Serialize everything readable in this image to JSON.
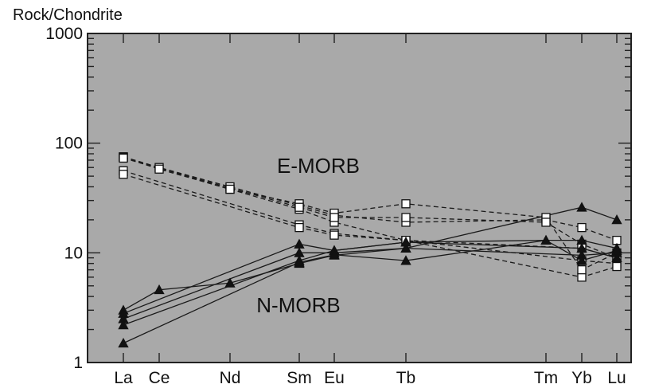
{
  "chart_data": {
    "type": "line",
    "title": "",
    "xlabel": "",
    "ylabel": "Rock/Chondrite",
    "yscale": "log",
    "ylim": [
      1,
      1000
    ],
    "y_ticks": [
      {
        "value": 1,
        "label": "1"
      },
      {
        "value": 10,
        "label": "10"
      },
      {
        "value": 100,
        "label": "100"
      },
      {
        "value": 1000,
        "label": "1000"
      }
    ],
    "categories": [
      "La",
      "Ce",
      "Nd",
      "Sm",
      "Eu",
      "Tb",
      "Tm",
      "Yb",
      "Lu"
    ],
    "grid": false,
    "legend": "none",
    "background_color": "#a9a9a9",
    "annotations": [
      {
        "text": "E-MORB",
        "near": "upper middle, above dashed lines"
      },
      {
        "text": "N-MORB",
        "near": "lower middle, below solid lines"
      }
    ],
    "series": [
      {
        "group": "E-MORB",
        "style": "dashed",
        "marker": "square",
        "points": [
          {
            "x": "La",
            "y": 75
          },
          {
            "x": "Ce",
            "y": 60
          },
          {
            "x": "Nd",
            "y": 40
          },
          {
            "x": "Sm",
            "y": 27
          },
          {
            "x": "Eu",
            "y": 22
          },
          {
            "x": "Tb",
            "y": 19
          },
          {
            "x": "Tm",
            "y": 20
          },
          {
            "x": "Yb",
            "y": 17
          },
          {
            "x": "Lu",
            "y": 13
          }
        ]
      },
      {
        "group": "E-MORB",
        "style": "dashed",
        "marker": "square",
        "points": [
          {
            "x": "La",
            "y": 75
          },
          {
            "x": "Nd",
            "y": 38
          },
          {
            "x": "Sm",
            "y": 25
          },
          {
            "x": "Eu",
            "y": 19
          },
          {
            "x": "Tb",
            "y": 13
          },
          {
            "x": "Yb",
            "y": 11
          },
          {
            "x": "Lu",
            "y": 9
          }
        ]
      },
      {
        "group": "E-MORB",
        "style": "dashed",
        "marker": "square",
        "points": [
          {
            "x": "La",
            "y": 56
          },
          {
            "x": "Sm",
            "y": 18
          },
          {
            "x": "Eu",
            "y": 15
          },
          {
            "x": "Tb",
            "y": 13
          },
          {
            "x": "Yb",
            "y": 8.5
          },
          {
            "x": "Lu",
            "y": 8
          }
        ]
      },
      {
        "group": "E-MORB",
        "style": "dashed",
        "marker": "square",
        "points": [
          {
            "x": "La",
            "y": 52
          },
          {
            "x": "Sm",
            "y": 17
          },
          {
            "x": "Eu",
            "y": 14.5
          },
          {
            "x": "Tb",
            "y": 13
          },
          {
            "x": "Yb",
            "y": 6
          },
          {
            "x": "Lu",
            "y": 7.5
          }
        ]
      },
      {
        "group": "E-MORB",
        "style": "dashed",
        "marker": "square",
        "points": [
          {
            "x": "La",
            "y": 74
          },
          {
            "x": "Ce",
            "y": 58
          },
          {
            "x": "Nd",
            "y": 38
          },
          {
            "x": "Sm",
            "y": 28
          },
          {
            "x": "Eu",
            "y": 23
          },
          {
            "x": "Tb",
            "y": 28
          },
          {
            "x": "Tm",
            "y": 21
          },
          {
            "x": "Yb",
            "y": 7
          },
          {
            "x": "Lu",
            "y": 10
          }
        ]
      },
      {
        "group": "E-MORB",
        "style": "dashed",
        "marker": "square",
        "points": [
          {
            "x": "La",
            "y": 73
          },
          {
            "x": "Sm",
            "y": 26
          },
          {
            "x": "Eu",
            "y": 21
          },
          {
            "x": "Tb",
            "y": 21
          },
          {
            "x": "Tm",
            "y": 19
          },
          {
            "x": "Yb",
            "y": 12
          },
          {
            "x": "Lu",
            "y": 9
          }
        ]
      },
      {
        "group": "N-MORB",
        "style": "solid",
        "marker": "triangle",
        "points": [
          {
            "x": "La",
            "y": 3
          },
          {
            "x": "Ce",
            "y": 4.6
          },
          {
            "x": "Nd",
            "y": 5.3
          },
          {
            "x": "Sm",
            "y": 8
          },
          {
            "x": "Eu",
            "y": 9.5
          },
          {
            "x": "Tb",
            "y": 11
          },
          {
            "x": "Yb",
            "y": 26
          },
          {
            "x": "Lu",
            "y": 20
          }
        ]
      },
      {
        "group": "N-MORB",
        "style": "solid",
        "marker": "triangle",
        "points": [
          {
            "x": "La",
            "y": 2.8
          },
          {
            "x": "Sm",
            "y": 12
          },
          {
            "x": "Eu",
            "y": 10.5
          },
          {
            "x": "Tb",
            "y": 12.5
          },
          {
            "x": "Tm",
            "y": 13
          },
          {
            "x": "Yb",
            "y": 13
          },
          {
            "x": "Lu",
            "y": 11
          }
        ]
      },
      {
        "group": "N-MORB",
        "style": "solid",
        "marker": "triangle",
        "points": [
          {
            "x": "La",
            "y": 2.5
          },
          {
            "x": "Sm",
            "y": 10
          },
          {
            "x": "Eu",
            "y": 10
          },
          {
            "x": "Tb",
            "y": 11
          },
          {
            "x": "Yb",
            "y": 9.5
          },
          {
            "x": "Lu",
            "y": 10
          }
        ]
      },
      {
        "group": "N-MORB",
        "style": "solid",
        "marker": "triangle",
        "points": [
          {
            "x": "La",
            "y": 2.2
          },
          {
            "x": "Sm",
            "y": 8.5
          },
          {
            "x": "Eu",
            "y": 10.5
          },
          {
            "x": "Tb",
            "y": 12.5
          },
          {
            "x": "Yb",
            "y": 11
          },
          {
            "x": "Lu",
            "y": 9
          }
        ]
      },
      {
        "group": "N-MORB",
        "style": "solid",
        "marker": "triangle",
        "points": [
          {
            "x": "La",
            "y": 1.5
          },
          {
            "x": "Sm",
            "y": 8.2
          },
          {
            "x": "Eu",
            "y": 9.6
          },
          {
            "x": "Tb",
            "y": 8.5
          },
          {
            "x": "Tm",
            "y": 13
          },
          {
            "x": "Yb",
            "y": 8.5
          },
          {
            "x": "Lu",
            "y": 10.5
          }
        ]
      }
    ]
  }
}
